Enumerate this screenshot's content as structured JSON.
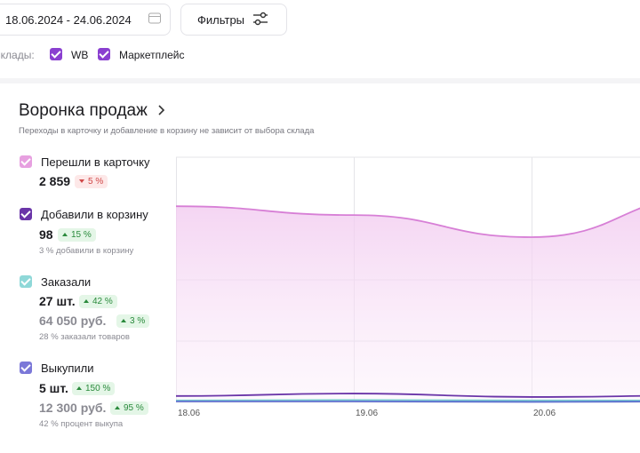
{
  "toolbar": {
    "date_range": "18.06.2024 - 24.06.2024",
    "filters_button": "Фильтры",
    "warehouses_label": "Склады:",
    "warehouses": [
      "WB",
      "Маркетплейс"
    ]
  },
  "panel": {
    "title": "Воронка продаж",
    "subtitle": "Переходы в карточку и добавление в корзину не зависит от выбора склада"
  },
  "metrics": [
    {
      "label": "Перешли в карточку",
      "value": "2 859",
      "change": "5 %"
    },
    {
      "label": "Добавили в корзину",
      "value": "98",
      "change": "15 %",
      "note": "3 % добавили в корзину"
    },
    {
      "label": "Заказали",
      "value": "27 шт.",
      "change": "42 %",
      "amount": "64 050 руб.",
      "amount_change": "3 %",
      "note": "28 % заказали товаров"
    },
    {
      "label": "Выкупили",
      "value": "5 шт.",
      "change": "150 %",
      "amount": "12 300 руб.",
      "amount_change": "95 %",
      "note": "42 % процент выкупа"
    }
  ],
  "chart_data": {
    "type": "line",
    "categories": [
      "18.06",
      "19.06",
      "20.06",
      null
    ],
    "ylim": [
      0,
      500
    ],
    "series": [
      {
        "name": "Перешли в карточку",
        "color": "#d77fd6",
        "values": [
          400,
          382,
          337,
          420
        ],
        "area": true
      },
      {
        "name": "Добавили в корзину",
        "color": "#6a35a8",
        "values": [
          13,
          18,
          11,
          14
        ]
      },
      {
        "name": "Заказали",
        "color": "#7fd0d0",
        "values": [
          4,
          5,
          4,
          4
        ]
      },
      {
        "name": "Выкупили",
        "color": "#5c6fd0",
        "values": [
          2,
          2,
          1,
          2
        ]
      }
    ]
  }
}
